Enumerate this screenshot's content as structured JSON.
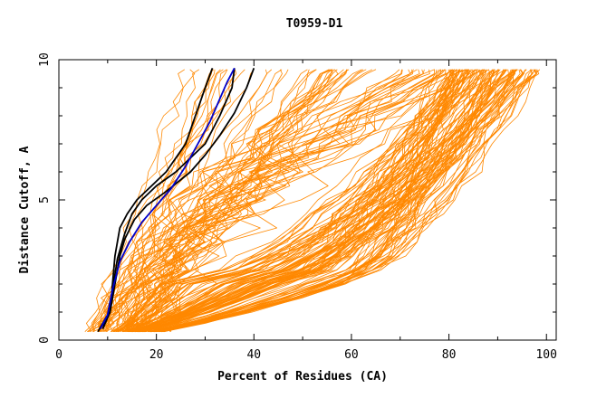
{
  "chart_data": {
    "type": "line",
    "title": "T0959-D1",
    "xlabel": "Percent of Residues (CA)",
    "ylabel": "Distance Cutoff, A",
    "xlim": [
      0,
      102
    ],
    "ylim": [
      0,
      10
    ],
    "x_ticks": [
      0,
      20,
      40,
      60,
      80,
      100
    ],
    "y_ticks": [
      0,
      5,
      10
    ],
    "grid": false,
    "legend": "none",
    "colors": {
      "bulk": "#ff8800",
      "highlight_black": "#000000",
      "highlight_blue": "#0000cc"
    },
    "series": [
      {
        "color": "#000000",
        "x": [
          9,
          10.5,
          11,
          11.5,
          12.5,
          14,
          16,
          19,
          22,
          24,
          26,
          28,
          30,
          31.5
        ],
        "y": [
          0.5,
          1,
          2,
          3,
          4,
          4.5,
          5,
          5.5,
          6,
          6.5,
          7,
          8,
          9,
          9.7
        ]
      },
      {
        "color": "#000000",
        "x": [
          8,
          10,
          11,
          12,
          13.5,
          15,
          17,
          20,
          24,
          27,
          30,
          33,
          35.5,
          36
        ],
        "y": [
          0.3,
          0.9,
          1.8,
          2.9,
          3.8,
          4.5,
          5,
          5.5,
          6,
          6.5,
          7,
          8,
          9,
          9.7
        ]
      },
      {
        "color": "#000000",
        "x": [
          9,
          10.5,
          11.5,
          12.5,
          13.5,
          15.5,
          18,
          22,
          27,
          30,
          33,
          36,
          38.5,
          40
        ],
        "y": [
          0.4,
          1,
          2,
          3,
          3.6,
          4.3,
          4.8,
          5.3,
          6,
          6.6,
          7.3,
          8.1,
          9,
          9.7
        ]
      },
      {
        "color": "#0000cc",
        "x": [
          8.5,
          10,
          11,
          12.5,
          14.5,
          17,
          20,
          23,
          26,
          28.5,
          31,
          33,
          34.5,
          36
        ],
        "y": [
          0.4,
          0.9,
          1.8,
          2.8,
          3.5,
          4.2,
          4.8,
          5.4,
          6.2,
          7,
          7.8,
          8.6,
          9.2,
          9.7
        ]
      }
    ]
  }
}
